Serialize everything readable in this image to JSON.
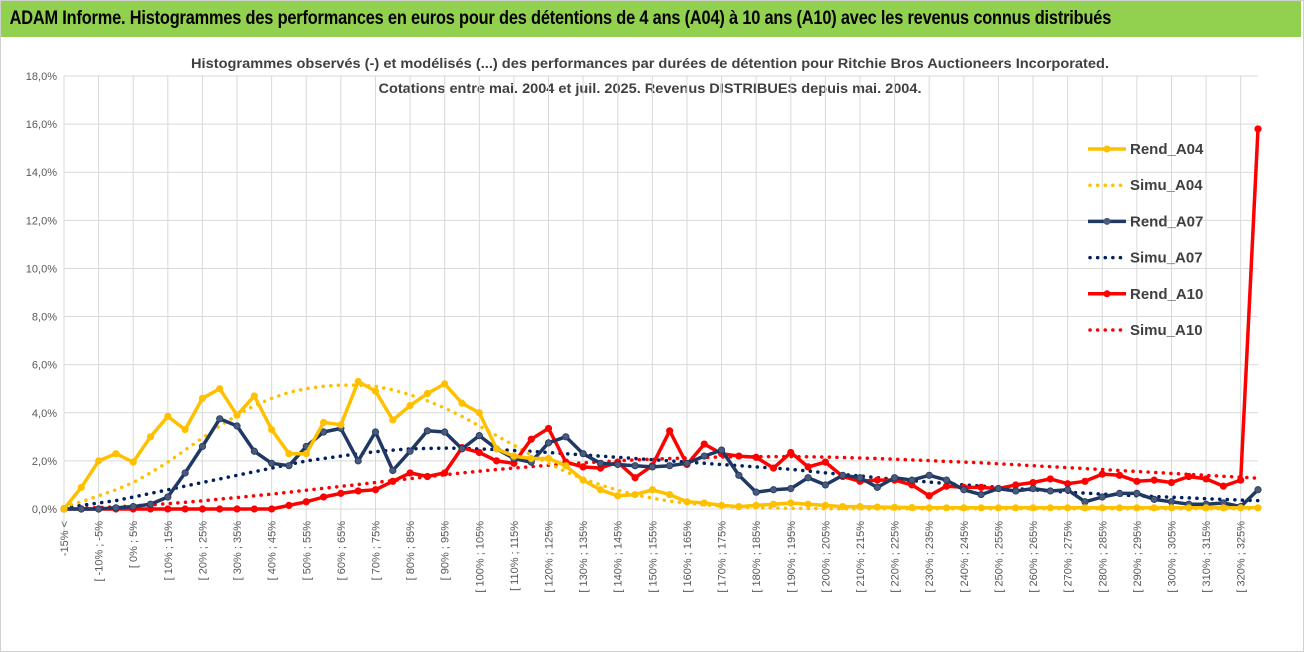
{
  "header": {
    "title": "ADAM Informe. Histogrammes des performances en euros pour des détentions de 4 ans (A04) à 10 ans (A10) avec les revenus connus distribués"
  },
  "chart_data": {
    "type": "line",
    "title": "Histogrammes observés (-) et modélisés (...) des performances par durées de détention pour Ritchie Bros Auctioneers Incorporated.",
    "subtitle": "Cotations entre mai. 2004 et juil. 2025. Revenus DISTRIBUES depuis mai. 2004.",
    "xlabel": "",
    "ylabel": "",
    "ylim": [
      0,
      18
    ],
    "y_ticks": [
      "0,0%",
      "2,0%",
      "4,0%",
      "6,0%",
      "8,0%",
      "10,0%",
      "12,0%",
      "14,0%",
      "16,0%",
      "18,0%"
    ],
    "grid": "horizontal and vertical",
    "legend_position": "right",
    "x_labels": [
      "-15% <",
      "[ -10% ; -5%",
      "[ 0% ; 5%",
      "[ 10% ; 15%",
      "[ 20% ; 25%",
      "[ 30% ; 35%",
      "[ 40% ; 45%",
      "[ 50% ; 55%",
      "[ 60% ; 65%",
      "[ 70% ; 75%",
      "[ 80% ; 85%",
      "[ 90% ; 95%",
      "[ 100% ; 105%",
      "[ 110% ; 115%",
      "[ 120% ; 125%",
      "[ 130% ; 135%",
      "[ 140% ; 145%",
      "[ 150% ; 155%",
      "[ 160% ; 165%",
      "[ 170% ; 175%",
      "[ 180% ; 185%",
      "[ 190% ; 195%",
      "[ 200% ; 205%",
      "[ 210% ; 215%",
      "[ 220% ; 225%",
      "[ 230% ; 235%",
      "[ 240% ; 245%",
      "[ 250% ; 255%",
      "[ 260% ; 265%",
      "[ 270% ; 275%",
      "[ 280% ; 285%",
      "[ 290% ; 295%",
      "[ 300% ; 305%",
      "[ 310% ; 315%",
      "[ 320% ; 325%"
    ],
    "series": [
      {
        "name": "Rend_A04",
        "style": "solid",
        "color": "#ffc000",
        "marker": true,
        "values": [
          0,
          0.9,
          2.0,
          2.3,
          1.95,
          3.0,
          3.85,
          3.3,
          4.6,
          5.0,
          3.9,
          4.7,
          3.3,
          2.3,
          2.3,
          3.6,
          3.5,
          5.3,
          4.9,
          3.7,
          4.3,
          4.8,
          5.2,
          4.4,
          4.0,
          2.5,
          2.2,
          2.1,
          2.1,
          1.8,
          1.2,
          0.8,
          0.55,
          0.6,
          0.8,
          0.6,
          0.3,
          0.25,
          0.15,
          0.1,
          0.15,
          0.2,
          0.25,
          0.2,
          0.15,
          0.1,
          0.1,
          0.08,
          0.07,
          0.06,
          0.05,
          0.05,
          0.05,
          0.05,
          0.05,
          0.05,
          0.05,
          0.05,
          0.05,
          0.05,
          0.05,
          0.05,
          0.05,
          0.05,
          0.05,
          0.05,
          0.05,
          0.05,
          0.05,
          0.05
        ]
      },
      {
        "name": "Simu_A04",
        "style": "dotted",
        "color": "#ffc000",
        "marker": false,
        "values": [
          0.1,
          0.3,
          0.55,
          0.8,
          1.1,
          1.5,
          1.95,
          2.45,
          2.95,
          3.45,
          3.9,
          4.3,
          4.6,
          4.85,
          5.0,
          5.1,
          5.15,
          5.15,
          5.1,
          4.95,
          4.75,
          4.5,
          4.2,
          3.85,
          3.45,
          3.05,
          2.65,
          2.25,
          1.9,
          1.55,
          1.25,
          1.0,
          0.78,
          0.6,
          0.45,
          0.33,
          0.24,
          0.17,
          0.12,
          0.08,
          0.06,
          0.04,
          0.03,
          0.02,
          0.01,
          0.01,
          0.01,
          0.01,
          0.01,
          0.01,
          0.01,
          0.01,
          0.01,
          0.01,
          0.01,
          0.01,
          0.01,
          0.01,
          0.01,
          0.01,
          0.01,
          0.01,
          0.01,
          0.01,
          0.01,
          0.01,
          0.01,
          0.01,
          0.01,
          0.01
        ]
      },
      {
        "name": "Rend_A07",
        "style": "solid",
        "color": "#1f3864",
        "marker": true,
        "values": [
          0,
          0,
          0,
          0.05,
          0.1,
          0.2,
          0.5,
          1.5,
          2.6,
          3.75,
          3.45,
          2.4,
          1.9,
          1.8,
          2.6,
          3.2,
          3.35,
          2.0,
          3.2,
          1.6,
          2.4,
          3.25,
          3.2,
          2.5,
          3.05,
          2.5,
          2.1,
          1.95,
          2.75,
          3.0,
          2.3,
          1.9,
          1.85,
          1.8,
          1.75,
          1.8,
          1.9,
          2.2,
          2.45,
          1.4,
          0.7,
          0.8,
          0.85,
          1.3,
          1.0,
          1.4,
          1.3,
          0.9,
          1.3,
          1.2,
          1.4,
          1.2,
          0.8,
          0.6,
          0.85,
          0.75,
          0.85,
          0.75,
          0.8,
          0.3,
          0.5,
          0.65,
          0.65,
          0.4,
          0.3,
          0.2,
          0.2,
          0.25,
          0.1,
          0.8
        ]
      },
      {
        "name": "Simu_A07",
        "style": "dotted",
        "color": "#002060",
        "marker": false,
        "values": [
          0.05,
          0.15,
          0.25,
          0.35,
          0.5,
          0.65,
          0.8,
          0.95,
          1.1,
          1.25,
          1.4,
          1.55,
          1.7,
          1.85,
          2.0,
          2.1,
          2.2,
          2.3,
          2.38,
          2.45,
          2.5,
          2.52,
          2.53,
          2.52,
          2.5,
          2.47,
          2.43,
          2.4,
          2.35,
          2.3,
          2.25,
          2.2,
          2.15,
          2.1,
          2.05,
          2.0,
          1.95,
          1.9,
          1.85,
          1.8,
          1.75,
          1.7,
          1.65,
          1.58,
          1.5,
          1.44,
          1.37,
          1.3,
          1.24,
          1.18,
          1.12,
          1.06,
          1.0,
          0.95,
          0.9,
          0.85,
          0.8,
          0.75,
          0.7,
          0.66,
          0.62,
          0.58,
          0.55,
          0.52,
          0.49,
          0.46,
          0.43,
          0.4,
          0.37,
          0.35
        ]
      },
      {
        "name": "Rend_A10",
        "style": "solid",
        "color": "#ff0000",
        "marker": true,
        "values": [
          0,
          0,
          0,
          0,
          0,
          0,
          0,
          0,
          0,
          0,
          0,
          0,
          0,
          0.15,
          0.3,
          0.5,
          0.65,
          0.75,
          0.8,
          1.15,
          1.5,
          1.35,
          1.5,
          2.55,
          2.35,
          2.0,
          1.9,
          2.9,
          3.35,
          1.95,
          1.75,
          1.7,
          1.95,
          1.3,
          1.8,
          3.25,
          1.85,
          2.7,
          2.3,
          2.2,
          2.15,
          1.7,
          2.35,
          1.75,
          1.95,
          1.35,
          1.15,
          1.2,
          1.2,
          1.0,
          0.55,
          0.95,
          0.9,
          0.9,
          0.85,
          1.0,
          1.1,
          1.25,
          1.05,
          1.15,
          1.45,
          1.4,
          1.15,
          1.2,
          1.1,
          1.35,
          1.25,
          0.95,
          1.2,
          15.8
        ]
      },
      {
        "name": "Simu_A10",
        "style": "dotted",
        "color": "#ff0000",
        "marker": false,
        "values": [
          0.02,
          0.04,
          0.06,
          0.09,
          0.13,
          0.17,
          0.22,
          0.28,
          0.34,
          0.41,
          0.48,
          0.55,
          0.62,
          0.7,
          0.78,
          0.86,
          0.94,
          1.02,
          1.1,
          1.18,
          1.26,
          1.34,
          1.42,
          1.5,
          1.57,
          1.64,
          1.7,
          1.76,
          1.82,
          1.87,
          1.92,
          1.96,
          2.0,
          2.04,
          2.07,
          2.1,
          2.12,
          2.14,
          2.16,
          2.17,
          2.18,
          2.18,
          2.18,
          2.17,
          2.16,
          2.14,
          2.12,
          2.1,
          2.07,
          2.04,
          2.01,
          1.98,
          1.95,
          1.92,
          1.88,
          1.84,
          1.8,
          1.76,
          1.72,
          1.68,
          1.64,
          1.6,
          1.56,
          1.52,
          1.48,
          1.44,
          1.4,
          1.36,
          1.32,
          1.28
        ]
      }
    ]
  }
}
